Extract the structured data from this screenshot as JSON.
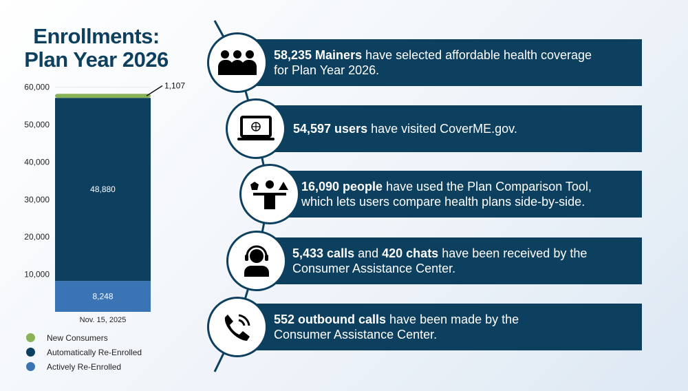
{
  "title": [
    "Enrollments:",
    "Plan Year 2026"
  ],
  "chart_data": {
    "type": "bar",
    "stacked": true,
    "categories": [
      "Nov. 15, 2025"
    ],
    "series": [
      {
        "name": "Actively Re-Enrolled",
        "values": [
          8248
        ],
        "color": "#3a74b4"
      },
      {
        "name": "Automatically Re-Enrolled",
        "values": [
          48880
        ],
        "color": "#0d3f5f"
      },
      {
        "name": "New Consumers",
        "values": [
          1107
        ],
        "color": "#8ab357"
      }
    ],
    "ylim": [
      0,
      60000
    ],
    "yticks": [
      "10,000",
      "20,000",
      "30,000",
      "40,000",
      "50,000",
      "60,000"
    ],
    "labels": [
      "8,248",
      "48,880",
      "1,107"
    ],
    "legend": "bottom-left",
    "legend_order": [
      "New Consumers",
      "Automatically Re-Enrolled",
      "Actively Re-Enrolled"
    ]
  },
  "stats": [
    {
      "icon": "people-group-icon",
      "bold": "58,235 Mainers",
      "rest": " have selected affordable health coverage",
      "line2": "for Plan Year 2026."
    },
    {
      "icon": "laptop-globe-icon",
      "bold": "54,597 users",
      "rest": " have visited CoverME.gov.",
      "line2": ""
    },
    {
      "icon": "person-comparing-icon",
      "bold": "16,090 people",
      "rest": " have used the Plan Comparison Tool,",
      "line2": "which lets users compare health plans side-by-side."
    },
    {
      "icon": "headset-agent-icon",
      "bold": "5,433 calls",
      "mid": " and ",
      "bold2": "420 chats",
      "rest": " have been received by the",
      "line2": "Consumer Assistance Center."
    },
    {
      "icon": "phone-call-icon",
      "bold": "552 outbound calls",
      "rest": " have been made by the",
      "line2": "Consumer Assistance Center."
    }
  ]
}
